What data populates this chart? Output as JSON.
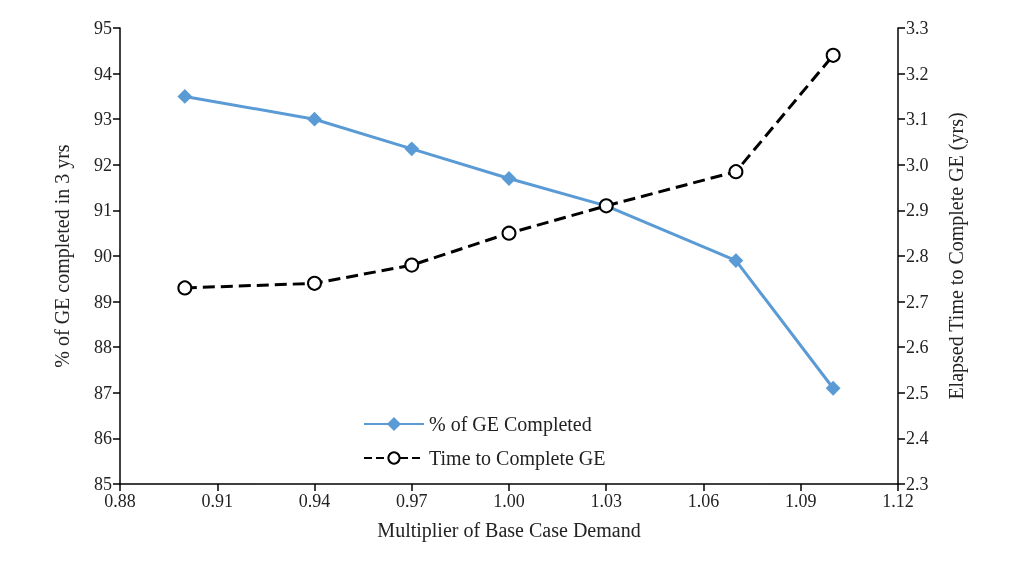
{
  "chart_data": {
    "type": "line",
    "xlabel": "Multiplier of Base Case Demand",
    "ylabel": "% of GE completed in 3 yrs",
    "y2label": "Elapsed Time to Complete GE (yrs)",
    "x": [
      0.9,
      0.94,
      0.97,
      1.0,
      1.03,
      1.07,
      1.1
    ],
    "series": [
      {
        "name": "% of GE Completed",
        "color": "#5b9bd5",
        "marker": "diamond",
        "line_style": "solid",
        "values": [
          93.5,
          93.0,
          92.35,
          91.7,
          91.1,
          89.9,
          87.1
        ]
      },
      {
        "name": "Time to Complete GE",
        "color": "#000000",
        "marker": "circle",
        "line_style": "dashed",
        "axis": "y2",
        "values": [
          2.73,
          2.74,
          2.78,
          2.85,
          2.91,
          2.985,
          3.24
        ]
      }
    ],
    "xlim": [
      0.88,
      1.12
    ],
    "xticks": [
      0.88,
      0.91,
      0.94,
      0.97,
      {
        "value": 1.0,
        "label": "1.00"
      },
      1.03,
      1.06,
      1.09,
      1.12
    ],
    "ylim": [
      85,
      95
    ],
    "yticks": [
      85,
      86,
      87,
      88,
      89,
      90,
      91,
      92,
      93,
      94,
      95
    ],
    "y2lim": [
      2.3,
      3.3
    ],
    "y2ticks": [
      2.3,
      2.4,
      2.5,
      2.6,
      2.7,
      2.8,
      2.9,
      {
        "value": 3.0,
        "label": "3.0"
      },
      3.1,
      3.2,
      3.3
    ],
    "grid": false,
    "legend": "bottom"
  }
}
